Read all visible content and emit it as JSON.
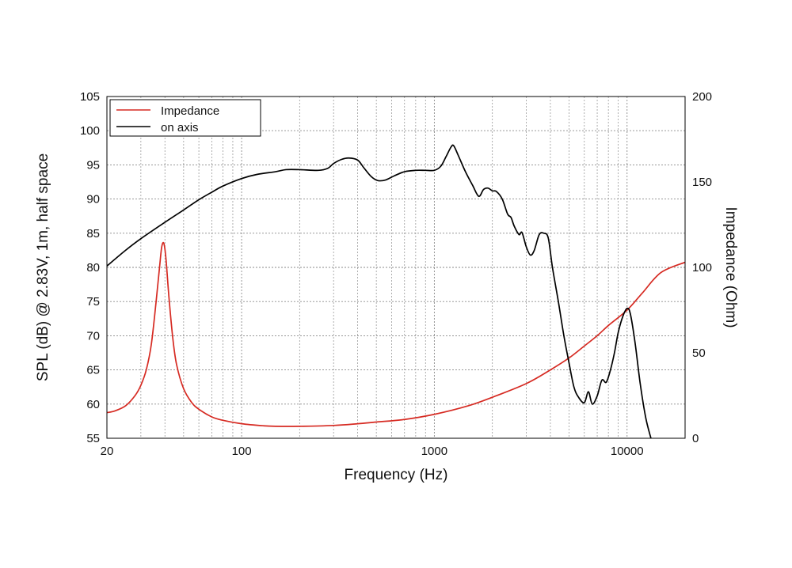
{
  "chart_data": {
    "type": "line",
    "xscale": "log",
    "xlabel": "Frequency (Hz)",
    "ylabel": "SPL (dB) @ 2.83V, 1m, half space",
    "y2label": "Impedance (Ohm)",
    "xlim": [
      20,
      20000
    ],
    "ylim": [
      55,
      105
    ],
    "y2lim": [
      0,
      200
    ],
    "xticks": [
      20,
      100,
      1000,
      10000
    ],
    "yticks": [
      55,
      60,
      65,
      70,
      75,
      80,
      85,
      90,
      95,
      100,
      105
    ],
    "y2ticks": [
      0,
      50,
      100,
      150,
      200
    ],
    "grid": true,
    "legend_position": "top-left",
    "colors": {
      "impedance": "#d62a22",
      "on_axis": "#000000"
    },
    "series": [
      {
        "name": "Impedance",
        "axis": "right",
        "points": [
          [
            20,
            15
          ],
          [
            22,
            16
          ],
          [
            25,
            19
          ],
          [
            28,
            25
          ],
          [
            30,
            31
          ],
          [
            32,
            40
          ],
          [
            34,
            55
          ],
          [
            36,
            80
          ],
          [
            37.5,
            100
          ],
          [
            38.5,
            112
          ],
          [
            39.5,
            114
          ],
          [
            40.5,
            105
          ],
          [
            42,
            82
          ],
          [
            44,
            58
          ],
          [
            46,
            43
          ],
          [
            50,
            29
          ],
          [
            55,
            21
          ],
          [
            60,
            17
          ],
          [
            70,
            12.5
          ],
          [
            80,
            10.5
          ],
          [
            100,
            8.5
          ],
          [
            130,
            7.3
          ],
          [
            150,
            7
          ],
          [
            200,
            7
          ],
          [
            300,
            7.5
          ],
          [
            400,
            8.5
          ],
          [
            500,
            9.5
          ],
          [
            700,
            11
          ],
          [
            1000,
            14
          ],
          [
            1500,
            19
          ],
          [
            2000,
            24
          ],
          [
            3000,
            32
          ],
          [
            4000,
            40
          ],
          [
            5000,
            47
          ],
          [
            6000,
            54
          ],
          [
            7000,
            60
          ],
          [
            8000,
            66
          ],
          [
            10000,
            75
          ],
          [
            12000,
            85
          ],
          [
            15000,
            97
          ],
          [
            20000,
            103
          ]
        ]
      },
      {
        "name": "on axis",
        "axis": "left",
        "points": [
          [
            20,
            80.2
          ],
          [
            25,
            82.5
          ],
          [
            30,
            84.2
          ],
          [
            40,
            86.6
          ],
          [
            50,
            88.4
          ],
          [
            60,
            89.9
          ],
          [
            70,
            91
          ],
          [
            80,
            91.9
          ],
          [
            100,
            93
          ],
          [
            120,
            93.6
          ],
          [
            150,
            94
          ],
          [
            170,
            94.3
          ],
          [
            200,
            94.3
          ],
          [
            250,
            94.2
          ],
          [
            280,
            94.5
          ],
          [
            300,
            95.2
          ],
          [
            330,
            95.8
          ],
          [
            360,
            96
          ],
          [
            400,
            95.7
          ],
          [
            430,
            94.6
          ],
          [
            470,
            93.3
          ],
          [
            510,
            92.7
          ],
          [
            560,
            92.8
          ],
          [
            620,
            93.4
          ],
          [
            700,
            94
          ],
          [
            800,
            94.2
          ],
          [
            900,
            94.2
          ],
          [
            1000,
            94.2
          ],
          [
            1080,
            94.8
          ],
          [
            1150,
            96.2
          ],
          [
            1220,
            97.6
          ],
          [
            1260,
            97.8
          ],
          [
            1330,
            96.4
          ],
          [
            1450,
            94
          ],
          [
            1580,
            92
          ],
          [
            1700,
            90.4
          ],
          [
            1800,
            91.4
          ],
          [
            1900,
            91.6
          ],
          [
            2000,
            91.2
          ],
          [
            2100,
            91.1
          ],
          [
            2250,
            90
          ],
          [
            2400,
            87.8
          ],
          [
            2500,
            87.3
          ],
          [
            2600,
            86
          ],
          [
            2750,
            84.8
          ],
          [
            2850,
            85.1
          ],
          [
            3000,
            83
          ],
          [
            3150,
            81.8
          ],
          [
            3300,
            82.5
          ],
          [
            3500,
            84.8
          ],
          [
            3700,
            85
          ],
          [
            3900,
            84.3
          ],
          [
            4100,
            80
          ],
          [
            4400,
            75
          ],
          [
            4700,
            70
          ],
          [
            5000,
            66
          ],
          [
            5300,
            62.5
          ],
          [
            5600,
            61
          ],
          [
            6000,
            60.2
          ],
          [
            6300,
            61.8
          ],
          [
            6600,
            60
          ],
          [
            7000,
            61.2
          ],
          [
            7400,
            63.5
          ],
          [
            7800,
            63.2
          ],
          [
            8200,
            65
          ],
          [
            8600,
            67.5
          ],
          [
            9000,
            70.5
          ],
          [
            9500,
            72.8
          ],
          [
            10000,
            74
          ],
          [
            10400,
            73.2
          ],
          [
            11000,
            69
          ],
          [
            11700,
            63
          ],
          [
            12500,
            58
          ],
          [
            13300,
            55
          ]
        ]
      }
    ]
  }
}
